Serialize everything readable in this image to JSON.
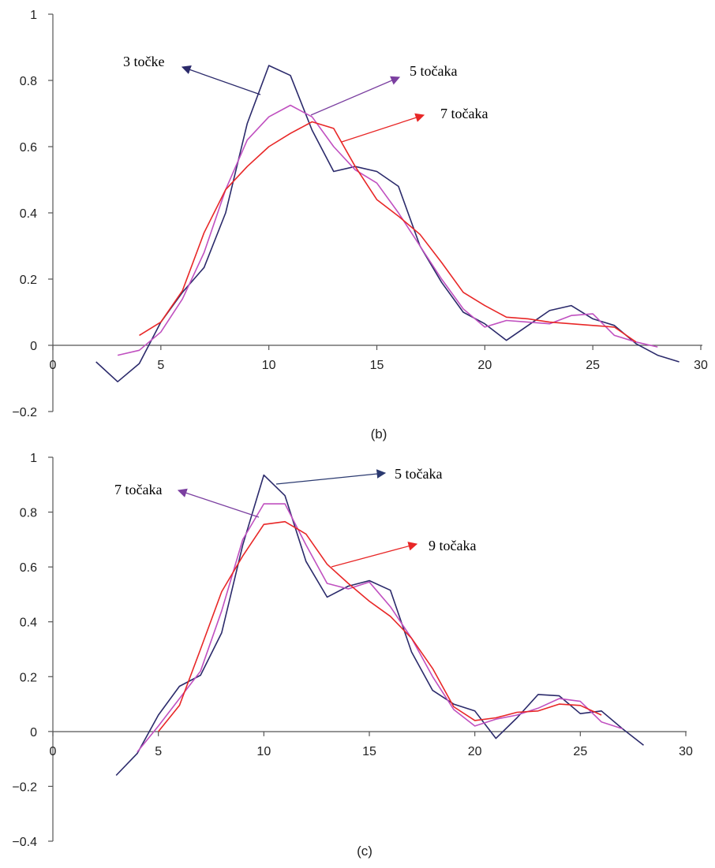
{
  "chart_data": [
    {
      "type": "line",
      "caption": "(b)",
      "xlim": [
        0,
        30
      ],
      "ylim": [
        -0.2,
        1
      ],
      "xticks": [
        0,
        5,
        10,
        15,
        20,
        25,
        30
      ],
      "yticks": [
        -0.2,
        0,
        0.2,
        0.4,
        0.6,
        0.8,
        1
      ],
      "ytick_labels": [
        "−0.2",
        "0",
        "0.2",
        "0.4",
        "0.6",
        "0.8",
        "1"
      ],
      "grid": false,
      "series": [
        {
          "name": "3 točke",
          "color": "#2b2a6b",
          "x": [
            2,
            3,
            4,
            5,
            6,
            7,
            8,
            9,
            10,
            11,
            12,
            13,
            14,
            15,
            16,
            17,
            18,
            19,
            20,
            21,
            22,
            23,
            24,
            25,
            26,
            27,
            28,
            29
          ],
          "y": [
            -0.05,
            -0.11,
            -0.055,
            0.07,
            0.16,
            0.235,
            0.4,
            0.67,
            0.845,
            0.815,
            0.65,
            0.525,
            0.54,
            0.525,
            0.48,
            0.3,
            0.19,
            0.1,
            0.065,
            0.015,
            0.06,
            0.105,
            0.12,
            0.08,
            0.06,
            0.005,
            -0.03,
            -0.05
          ]
        },
        {
          "name": "5 točaka",
          "color": "#c050c0",
          "x": [
            3,
            4,
            5,
            6,
            7,
            8,
            9,
            10,
            11,
            12,
            13,
            14,
            15,
            16,
            17,
            18,
            19,
            20,
            21,
            22,
            23,
            24,
            25,
            26,
            27,
            28
          ],
          "y": [
            -0.03,
            -0.015,
            0.04,
            0.14,
            0.28,
            0.47,
            0.62,
            0.69,
            0.725,
            0.69,
            0.6,
            0.53,
            0.49,
            0.4,
            0.3,
            0.2,
            0.11,
            0.055,
            0.075,
            0.07,
            0.065,
            0.09,
            0.095,
            0.03,
            0.01,
            -0.005
          ]
        },
        {
          "name": "7 točaka",
          "color": "#e82727",
          "x": [
            4,
            5,
            6,
            7,
            8,
            9,
            10,
            11,
            12,
            13,
            14,
            15,
            16,
            17,
            18,
            19,
            20,
            21,
            22,
            23,
            24,
            25,
            26,
            27
          ],
          "y": [
            0.03,
            0.07,
            0.165,
            0.34,
            0.47,
            0.54,
            0.6,
            0.64,
            0.675,
            0.655,
            0.54,
            0.44,
            0.39,
            0.335,
            0.25,
            0.16,
            0.12,
            0.085,
            0.08,
            0.07,
            0.065,
            0.06,
            0.055,
            0.01
          ]
        }
      ],
      "annotations": [
        {
          "text": "3 točke",
          "color": "#2b2a6b"
        },
        {
          "text": "5 točaka",
          "color": "#7b3fa0"
        },
        {
          "text": "7 točaka",
          "color": "#e82727"
        }
      ]
    },
    {
      "type": "line",
      "caption": "(c)",
      "xlim": [
        0,
        30
      ],
      "ylim": [
        -0.4,
        1
      ],
      "xticks": [
        0,
        5,
        10,
        15,
        20,
        25,
        30
      ],
      "yticks": [
        -0.4,
        -0.2,
        0,
        0.2,
        0.4,
        0.6,
        0.8,
        1
      ],
      "ytick_labels": [
        "−0.4",
        "−0.2",
        "0",
        "0.2",
        "0.4",
        "0.6",
        "0.8",
        "1"
      ],
      "grid": false,
      "series": [
        {
          "name": "5 točaka",
          "color": "#2b2a6b",
          "x": [
            3,
            4,
            5,
            6,
            7,
            8,
            9,
            10,
            11,
            12,
            13,
            14,
            15,
            16,
            17,
            18,
            19,
            20,
            21,
            22,
            23,
            24,
            25,
            26,
            27,
            28
          ],
          "y": [
            -0.16,
            -0.08,
            0.06,
            0.165,
            0.205,
            0.36,
            0.68,
            0.935,
            0.86,
            0.62,
            0.49,
            0.53,
            0.55,
            0.515,
            0.29,
            0.15,
            0.1,
            0.075,
            -0.025,
            0.05,
            0.135,
            0.13,
            0.065,
            0.075,
            0.01,
            -0.05
          ]
        },
        {
          "name": "7 točaka",
          "color": "#c050c0",
          "x": [
            4,
            5,
            6,
            7,
            8,
            9,
            10,
            11,
            12,
            13,
            14,
            15,
            16,
            17,
            18,
            19,
            20,
            21,
            22,
            23,
            24,
            25,
            26,
            27
          ],
          "y": [
            -0.075,
            0.02,
            0.12,
            0.22,
            0.44,
            0.7,
            0.83,
            0.83,
            0.68,
            0.54,
            0.52,
            0.545,
            0.455,
            0.34,
            0.2,
            0.08,
            0.02,
            0.045,
            0.06,
            0.085,
            0.12,
            0.11,
            0.035,
            0.01
          ]
        },
        {
          "name": "9 točaka",
          "color": "#e82727",
          "x": [
            5,
            6,
            7,
            8,
            9,
            10,
            11,
            12,
            13,
            14,
            15,
            16,
            17,
            18,
            19,
            20,
            21,
            22,
            23,
            24,
            25,
            26
          ],
          "y": [
            0.0,
            0.095,
            0.3,
            0.51,
            0.64,
            0.755,
            0.765,
            0.72,
            0.61,
            0.54,
            0.475,
            0.42,
            0.34,
            0.23,
            0.09,
            0.04,
            0.05,
            0.07,
            0.075,
            0.1,
            0.095,
            0.06
          ]
        }
      ],
      "annotations": [
        {
          "text": "5 točaka",
          "color": "#2b3a70"
        },
        {
          "text": "7 točaka",
          "color": "#7b3fa0"
        },
        {
          "text": "9 točaka",
          "color": "#e82727"
        }
      ]
    }
  ]
}
